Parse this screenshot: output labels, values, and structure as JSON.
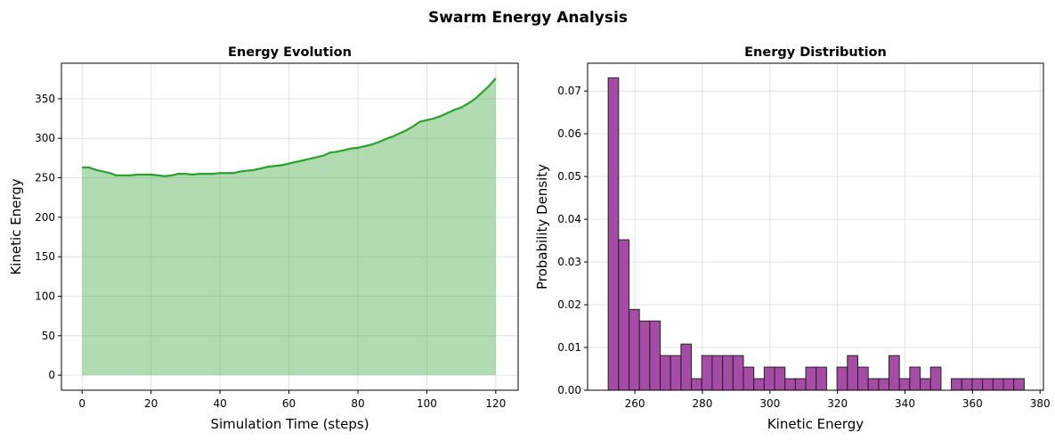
{
  "suptitle": "Swarm Energy Analysis",
  "chart_data": [
    {
      "type": "area",
      "title": "Energy Evolution",
      "xlabel": "Simulation Time (steps)",
      "ylabel": "Kinetic Energy",
      "xlim": [
        -6,
        126.5
      ],
      "ylim": [
        -19,
        395
      ],
      "xticks": [
        0,
        20,
        40,
        60,
        80,
        100,
        120
      ],
      "yticks": [
        0,
        50,
        100,
        150,
        200,
        250,
        300,
        350
      ],
      "grid": true,
      "line_color": "#2ca02c",
      "fill_color": "#b2d8b2",
      "x": [
        0,
        2,
        4,
        6,
        8,
        10,
        12,
        14,
        16,
        18,
        20,
        22,
        24,
        26,
        28,
        30,
        32,
        34,
        36,
        38,
        40,
        42,
        44,
        46,
        48,
        50,
        52,
        54,
        56,
        58,
        60,
        62,
        64,
        66,
        68,
        70,
        72,
        74,
        76,
        78,
        80,
        82,
        84,
        86,
        88,
        90,
        92,
        94,
        96,
        98,
        100,
        102,
        104,
        106,
        108,
        110,
        112,
        114,
        116,
        118,
        120
      ],
      "y": [
        263,
        263,
        260,
        258,
        256,
        253,
        253,
        253,
        254,
        254,
        254,
        253,
        252,
        253,
        255,
        255,
        254,
        255,
        255,
        255,
        256,
        256,
        256,
        258,
        259,
        260,
        262,
        264,
        265,
        266,
        268,
        270,
        272,
        274,
        276,
        278,
        282,
        283,
        285,
        287,
        288,
        290,
        292,
        295,
        299,
        302,
        306,
        310,
        315,
        321,
        323,
        325,
        328,
        332,
        336,
        339,
        344,
        350,
        358,
        366,
        376
      ]
    },
    {
      "type": "bar",
      "title": "Energy Distribution",
      "xlabel": "Kinetic Energy",
      "ylabel": "Probability Density",
      "xlim": [
        246,
        381
      ],
      "ylim": [
        0,
        0.0765
      ],
      "xticks": [
        260,
        280,
        300,
        320,
        340,
        360,
        380
      ],
      "yticks": [
        0.0,
        0.01,
        0.02,
        0.03,
        0.04,
        0.05,
        0.06,
        0.07
      ],
      "ytick_labels": [
        "0.00",
        "0.01",
        "0.02",
        "0.03",
        "0.04",
        "0.05",
        "0.06",
        "0.07"
      ],
      "grid": true,
      "bar_color": "#a64ca6",
      "edge_color": "#222222",
      "bin_start": 252.1,
      "bin_end": 375.3,
      "values": [
        0.0731,
        0.0352,
        0.0189,
        0.0162,
        0.0162,
        0.0081,
        0.0081,
        0.0108,
        0.0027,
        0.0081,
        0.0081,
        0.0081,
        0.0081,
        0.0054,
        0.0027,
        0.0054,
        0.0054,
        0.0027,
        0.0027,
        0.0054,
        0.0054,
        0,
        0.0054,
        0.0081,
        0.0054,
        0.0027,
        0.0027,
        0.0081,
        0.0027,
        0.0054,
        0.0027,
        0.0054,
        0,
        0.0027,
        0.0027,
        0.0027,
        0.0027,
        0.0027,
        0.0027,
        0.0027
      ]
    }
  ]
}
